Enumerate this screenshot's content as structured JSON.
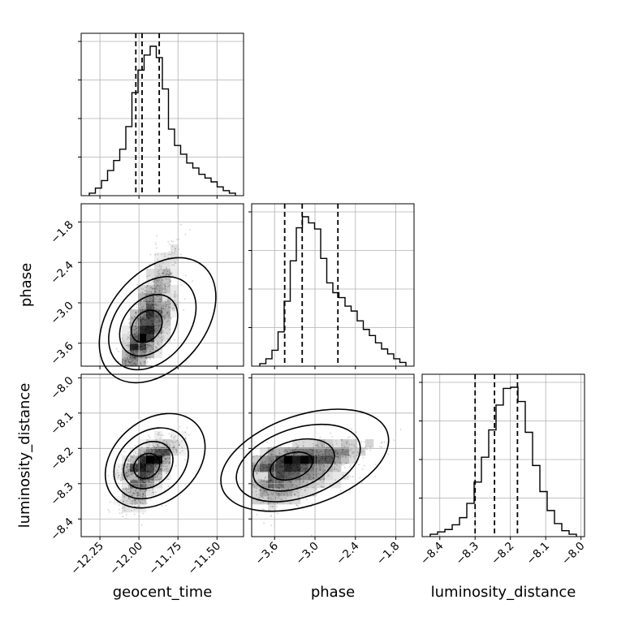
{
  "chart_data": {
    "type": "corner",
    "parameters": [
      "geocent_time",
      "phase",
      "luminosity_distance"
    ],
    "labels": {
      "geocent_time": "geocent_time",
      "phase": "phase",
      "luminosity_distance": "luminosity_distance"
    },
    "ranges": {
      "geocent_time": [
        -12.37,
        -11.33
      ],
      "phase": [
        -3.94,
        -1.53
      ],
      "luminosity_distance": [
        -8.45,
        -7.99
      ]
    },
    "ticks": {
      "geocent_time": [
        -12.25,
        -12.0,
        -11.75,
        -11.5
      ],
      "phase": [
        -3.6,
        -3.0,
        -2.4,
        -1.8
      ],
      "luminosity_distance": [
        -8.4,
        -8.3,
        -8.2,
        -8.1,
        -8.0
      ]
    },
    "tick_labels": {
      "geocent_time": [
        "−12.25",
        "−12.00",
        "−11.75",
        "−11.50"
      ],
      "phase": [
        "−3.6",
        "−3.0",
        "−2.4",
        "−1.8"
      ],
      "luminosity_distance": [
        "−8.4",
        "−8.3",
        "−8.2",
        "−8.1",
        "−8.0"
      ]
    },
    "quantiles": {
      "geocent_time": [
        -12.02,
        -11.98,
        -11.87
      ],
      "phase": [
        -3.45,
        -3.19,
        -2.66
      ],
      "luminosity_distance": [
        -8.3,
        -8.245,
        -8.18
      ]
    },
    "histograms": {
      "geocent_time": [
        2,
        6,
        12,
        20,
        28,
        37,
        55,
        82,
        100,
        112,
        119,
        110,
        85,
        53,
        40,
        33,
        26,
        22,
        17,
        14,
        11,
        7,
        4,
        2
      ],
      "phase": [
        2,
        6,
        13,
        28,
        53,
        86,
        113,
        122,
        117,
        112,
        88,
        68,
        60,
        56,
        49,
        45,
        37,
        30,
        25,
        19,
        14,
        10,
        6,
        3
      ],
      "luminosity_distance": [
        2,
        4,
        6,
        10,
        16,
        28,
        46,
        67,
        90,
        111,
        125,
        126,
        114,
        88,
        60,
        38,
        22,
        11,
        5,
        2
      ]
    },
    "centers": {
      "geocent_time": -11.95,
      "phase": -3.35,
      "luminosity_distance": -8.25
    },
    "grid": true,
    "hist_color": "#000000",
    "density_color": "#000000"
  }
}
